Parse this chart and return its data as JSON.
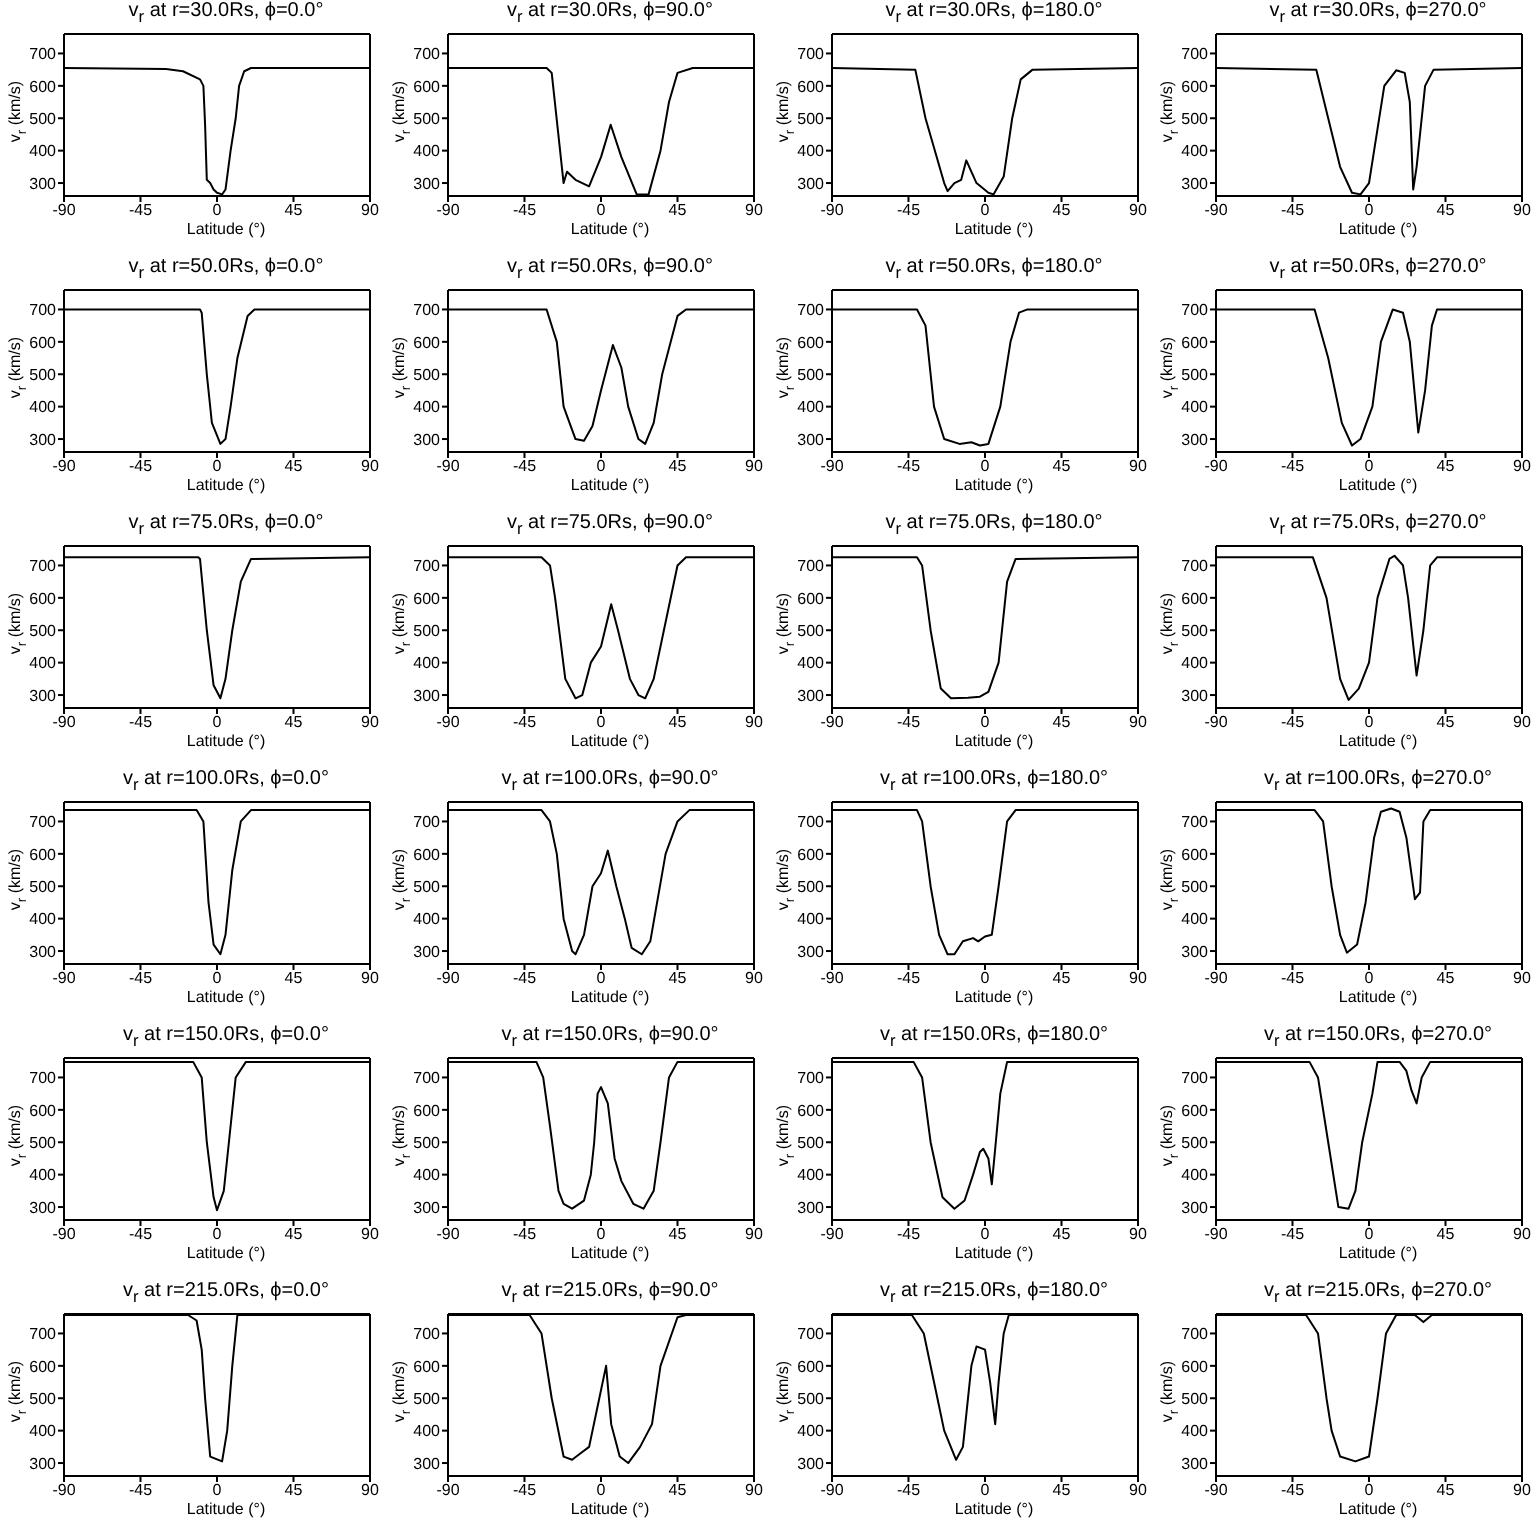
{
  "chart_data": [
    {
      "type": "line",
      "title": "v$_{r}$ at r=30.0Rs, ϕ=0.0°",
      "xlabel": "Latitude (°)",
      "ylabel": "v$_{r}$ (km/s)",
      "color": "#000000",
      "xlim": [
        -90,
        90
      ],
      "ylim": [
        260,
        760
      ],
      "xticks": [
        -90,
        -45,
        0,
        45,
        90
      ],
      "yticks": [
        300,
        400,
        500,
        600,
        700
      ],
      "x": [
        -90,
        -30,
        -20,
        -10,
        -8,
        -7,
        -6,
        -4,
        -2,
        0,
        3,
        5,
        8,
        11,
        13,
        16,
        20,
        90
      ],
      "values": [
        655,
        652,
        645,
        620,
        600,
        480,
        310,
        300,
        280,
        270,
        265,
        280,
        400,
        500,
        600,
        645,
        655,
        655
      ]
    },
    {
      "type": "line",
      "title": "v$_{r}$ at r=30.0Rs, ϕ=90.0°",
      "xlabel": "Latitude (°)",
      "ylabel": "v$_{r}$ (km/s)",
      "color": "#000000",
      "xlim": [
        -90,
        90
      ],
      "ylim": [
        260,
        760
      ],
      "xticks": [
        -90,
        -45,
        0,
        45,
        90
      ],
      "yticks": [
        300,
        400,
        500,
        600,
        700
      ],
      "x": [
        -90,
        -32,
        -29,
        -22,
        -20,
        -15,
        -7,
        0,
        5.7,
        12,
        21,
        28,
        35,
        40,
        45,
        54,
        90
      ],
      "values": [
        655,
        655,
        640,
        300,
        335,
        310,
        290,
        380,
        480,
        380,
        265,
        265,
        400,
        550,
        640,
        655,
        655
      ]
    },
    {
      "type": "line",
      "title": "v$_{r}$ at r=30.0Rs, ϕ=180.0°",
      "xlabel": "Latitude (°)",
      "ylabel": "v$_{r}$ (km/s)",
      "color": "#000000",
      "xlim": [
        -90,
        90
      ],
      "ylim": [
        260,
        760
      ],
      "xticks": [
        -90,
        -45,
        0,
        45,
        90
      ],
      "yticks": [
        300,
        400,
        500,
        600,
        700
      ],
      "x": [
        -90,
        -41,
        -35,
        -24,
        -22,
        -18,
        -14,
        -11,
        -5,
        2,
        5,
        11,
        16,
        21,
        28,
        90
      ],
      "values": [
        655,
        650,
        500,
        300,
        275,
        300,
        310,
        370,
        300,
        270,
        265,
        320,
        500,
        620,
        650,
        655
      ]
    },
    {
      "type": "line",
      "title": "v$_{r}$ at r=30.0Rs, ϕ=270.0°",
      "xlabel": "Latitude (°)",
      "ylabel": "v$_{r}$ (km/s)",
      "color": "#000000",
      "xlim": [
        -90,
        90
      ],
      "ylim": [
        260,
        760
      ],
      "xticks": [
        -90,
        -45,
        0,
        45,
        90
      ],
      "yticks": [
        300,
        400,
        500,
        600,
        700
      ],
      "x": [
        -90,
        -31,
        -24,
        -17,
        -10,
        -5,
        0,
        3,
        9,
        16,
        21,
        24,
        26,
        28,
        33,
        38,
        90
      ],
      "values": [
        655,
        650,
        500,
        350,
        270,
        265,
        300,
        400,
        600,
        648,
        640,
        550,
        280,
        350,
        600,
        650,
        655
      ]
    },
    {
      "type": "line",
      "title": "v$_{r}$ at r=50.0Rs, ϕ=0.0°",
      "xlabel": "Latitude (°)",
      "ylabel": "v$_{r}$ (km/s)",
      "color": "#000000",
      "xlim": [
        -90,
        90
      ],
      "ylim": [
        260,
        760
      ],
      "xticks": [
        -90,
        -45,
        0,
        45,
        90
      ],
      "yticks": [
        300,
        400,
        500,
        600,
        700
      ],
      "x": [
        -90,
        -10,
        -9,
        -6,
        -3,
        2,
        5,
        8,
        12,
        18,
        22,
        90
      ],
      "values": [
        700,
        700,
        690,
        500,
        350,
        285,
        300,
        400,
        550,
        680,
        700,
        700
      ]
    },
    {
      "type": "line",
      "title": "v$_{r}$ at r=50.0Rs, ϕ=90.0°",
      "xlabel": "Latitude (°)",
      "ylabel": "v$_{r}$ (km/s)",
      "color": "#000000",
      "xlim": [
        -90,
        90
      ],
      "ylim": [
        260,
        760
      ],
      "xticks": [
        -90,
        -45,
        0,
        45,
        90
      ],
      "yticks": [
        300,
        400,
        500,
        600,
        700
      ],
      "x": [
        -90,
        -32,
        -26,
        -22,
        -15,
        -10,
        -5,
        0,
        7,
        12,
        16,
        22,
        26,
        31,
        36,
        45,
        50,
        90
      ],
      "values": [
        700,
        700,
        600,
        400,
        300,
        295,
        340,
        450,
        590,
        520,
        400,
        300,
        285,
        350,
        500,
        680,
        700,
        700
      ]
    },
    {
      "type": "line",
      "title": "v$_{r}$ at r=50.0Rs, ϕ=180.0°",
      "xlabel": "Latitude (°)",
      "ylabel": "v$_{r}$ (km/s)",
      "color": "#000000",
      "xlim": [
        -90,
        90
      ],
      "ylim": [
        260,
        760
      ],
      "xticks": [
        -90,
        -45,
        0,
        45,
        90
      ],
      "yticks": [
        300,
        400,
        500,
        600,
        700
      ],
      "x": [
        -90,
        -40,
        -35,
        -30,
        -24,
        -15,
        -8,
        -3,
        2,
        9,
        15,
        20,
        25,
        90
      ],
      "values": [
        700,
        700,
        650,
        400,
        300,
        285,
        290,
        280,
        285,
        400,
        600,
        690,
        700,
        700
      ]
    },
    {
      "type": "line",
      "title": "v$_{r}$ at r=50.0Rs, ϕ=270.0°",
      "xlabel": "Latitude (°)",
      "ylabel": "v$_{r}$ (km/s)",
      "color": "#000000",
      "xlim": [
        -90,
        90
      ],
      "ylim": [
        260,
        760
      ],
      "xticks": [
        -90,
        -45,
        0,
        45,
        90
      ],
      "yticks": [
        300,
        400,
        500,
        600,
        700
      ],
      "x": [
        -90,
        -32,
        -24,
        -16,
        -10,
        -5,
        2,
        7,
        14,
        20,
        24,
        29,
        33,
        37,
        40,
        90
      ],
      "values": [
        700,
        700,
        550,
        350,
        280,
        300,
        400,
        600,
        700,
        690,
        600,
        320,
        450,
        650,
        700,
        700
      ]
    },
    {
      "type": "line",
      "title": "v$_{r}$ at r=75.0Rs, ϕ=0.0°",
      "xlabel": "Latitude (°)",
      "ylabel": "v$_{r}$ (km/s)",
      "color": "#000000",
      "xlim": [
        -90,
        90
      ],
      "ylim": [
        260,
        760
      ],
      "xticks": [
        -90,
        -45,
        0,
        45,
        90
      ],
      "yticks": [
        300,
        400,
        500,
        600,
        700
      ],
      "x": [
        -90,
        -11,
        -10,
        -6,
        -2,
        2,
        5,
        9,
        14,
        20,
        90
      ],
      "values": [
        725,
        725,
        720,
        500,
        330,
        290,
        350,
        500,
        650,
        720,
        725
      ]
    },
    {
      "type": "line",
      "title": "v$_{r}$ at r=75.0Rs, ϕ=90.0°",
      "xlabel": "Latitude (°)",
      "ylabel": "v$_{r}$ (km/s)",
      "color": "#000000",
      "xlim": [
        -90,
        90
      ],
      "ylim": [
        260,
        760
      ],
      "xticks": [
        -90,
        -45,
        0,
        45,
        90
      ],
      "yticks": [
        300,
        400,
        500,
        600,
        700
      ],
      "x": [
        -90,
        -35,
        -30,
        -27,
        -21,
        -15,
        -11,
        -6,
        0,
        6,
        10,
        17,
        22,
        26,
        31,
        37,
        45,
        50,
        90
      ],
      "values": [
        725,
        725,
        700,
        600,
        350,
        290,
        300,
        400,
        450,
        580,
        500,
        350,
        300,
        290,
        350,
        500,
        700,
        725,
        725
      ]
    },
    {
      "type": "line",
      "title": "v$_{r}$ at r=75.0Rs, ϕ=180.0°",
      "xlabel": "Latitude (°)",
      "ylabel": "v$_{r}$ (km/s)",
      "color": "#000000",
      "xlim": [
        -90,
        90
      ],
      "ylim": [
        260,
        760
      ],
      "xticks": [
        -90,
        -45,
        0,
        45,
        90
      ],
      "yticks": [
        300,
        400,
        500,
        600,
        700
      ],
      "x": [
        -90,
        -40,
        -37,
        -32,
        -26,
        -20,
        -10,
        -3,
        2,
        8,
        13,
        18,
        90
      ],
      "values": [
        725,
        725,
        700,
        500,
        320,
        290,
        292,
        295,
        310,
        400,
        650,
        720,
        725
      ]
    },
    {
      "type": "line",
      "title": "v$_{r}$ at r=75.0Rs, ϕ=270.0°",
      "xlabel": "Latitude (°)",
      "ylabel": "v$_{r}$ (km/s)",
      "color": "#000000",
      "xlim": [
        -90,
        90
      ],
      "ylim": [
        260,
        760
      ],
      "xticks": [
        -90,
        -45,
        0,
        45,
        90
      ],
      "yticks": [
        300,
        400,
        500,
        600,
        700
      ],
      "x": [
        -90,
        -33,
        -25,
        -17,
        -12,
        -6,
        0,
        5,
        12,
        15,
        20,
        23,
        28,
        32,
        36,
        40,
        90
      ],
      "values": [
        725,
        725,
        600,
        350,
        285,
        320,
        400,
        600,
        720,
        730,
        700,
        600,
        360,
        500,
        700,
        725,
        725
      ]
    },
    {
      "type": "line",
      "title": "v$_{r}$ at r=100.0Rs, ϕ=0.0°",
      "xlabel": "Latitude (°)",
      "ylabel": "v$_{r}$ (km/s)",
      "color": "#000000",
      "xlim": [
        -90,
        90
      ],
      "ylim": [
        260,
        760
      ],
      "xticks": [
        -90,
        -45,
        0,
        45,
        90
      ],
      "yticks": [
        300,
        400,
        500,
        600,
        700
      ],
      "x": [
        -90,
        -12,
        -8,
        -5,
        -2,
        2,
        5,
        9,
        14,
        20,
        90
      ],
      "values": [
        735,
        735,
        700,
        450,
        320,
        290,
        350,
        550,
        700,
        735,
        735
      ]
    },
    {
      "type": "line",
      "title": "v$_{r}$ at r=100.0Rs, ϕ=90.0°",
      "xlabel": "Latitude (°)",
      "ylabel": "v$_{r}$ (km/s)",
      "color": "#000000",
      "xlim": [
        -90,
        90
      ],
      "ylim": [
        260,
        760
      ],
      "xticks": [
        -90,
        -45,
        0,
        45,
        90
      ],
      "yticks": [
        300,
        400,
        500,
        600,
        700
      ],
      "x": [
        -90,
        -35,
        -30,
        -26,
        -22,
        -17,
        -15,
        -10,
        -5,
        0,
        4,
        9,
        14,
        18,
        24,
        29,
        33,
        38,
        45,
        52,
        90
      ],
      "values": [
        735,
        735,
        700,
        600,
        400,
        300,
        290,
        350,
        500,
        540,
        610,
        500,
        400,
        310,
        290,
        330,
        450,
        600,
        700,
        735,
        735
      ]
    },
    {
      "type": "line",
      "title": "v$_{r}$ at r=100.0Rs, ϕ=180.0°",
      "xlabel": "Latitude (°)",
      "ylabel": "v$_{r}$ (km/s)",
      "color": "#000000",
      "xlim": [
        -90,
        90
      ],
      "ylim": [
        260,
        760
      ],
      "xticks": [
        -90,
        -45,
        0,
        45,
        90
      ],
      "yticks": [
        300,
        400,
        500,
        600,
        700
      ],
      "x": [
        -90,
        -40,
        -37,
        -32,
        -27,
        -22,
        -18,
        -13,
        -7,
        -4,
        0,
        4,
        8,
        13,
        18,
        90
      ],
      "values": [
        735,
        735,
        700,
        500,
        350,
        290,
        290,
        330,
        340,
        330,
        345,
        350,
        500,
        700,
        735,
        735
      ]
    },
    {
      "type": "line",
      "title": "v$_{r}$ at r=100.0Rs, ϕ=270.0°",
      "xlabel": "Latitude (°)",
      "ylabel": "v$_{r}$ (km/s)",
      "color": "#000000",
      "xlim": [
        -90,
        90
      ],
      "ylim": [
        260,
        760
      ],
      "xticks": [
        -90,
        -45,
        0,
        45,
        90
      ],
      "yticks": [
        300,
        400,
        500,
        600,
        700
      ],
      "x": [
        -90,
        -32,
        -27,
        -22,
        -17,
        -13,
        -7,
        -2,
        3,
        7,
        13,
        18,
        22,
        27,
        30,
        32,
        36,
        90
      ],
      "values": [
        735,
        735,
        700,
        500,
        350,
        295,
        320,
        450,
        650,
        730,
        740,
        730,
        650,
        460,
        480,
        700,
        735,
        735
      ]
    },
    {
      "type": "line",
      "title": "v$_{r}$ at r=150.0Rs, ϕ=0.0°",
      "xlabel": "Latitude (°)",
      "ylabel": "v$_{r}$ (km/s)",
      "color": "#000000",
      "xlim": [
        -90,
        90
      ],
      "ylim": [
        260,
        760
      ],
      "xticks": [
        -90,
        -45,
        0,
        45,
        90
      ],
      "yticks": [
        300,
        400,
        500,
        600,
        700
      ],
      "x": [
        -90,
        -14,
        -9,
        -6,
        -2,
        0,
        4,
        7,
        11,
        17,
        90
      ],
      "values": [
        748,
        748,
        700,
        500,
        330,
        290,
        350,
        500,
        700,
        748,
        748
      ]
    },
    {
      "type": "line",
      "title": "v$_{r}$ at r=150.0Rs, ϕ=90.0°",
      "xlabel": "Latitude (°)",
      "ylabel": "v$_{r}$ (km/s)",
      "color": "#000000",
      "xlim": [
        -90,
        90
      ],
      "ylim": [
        260,
        760
      ],
      "xticks": [
        -90,
        -45,
        0,
        45,
        90
      ],
      "yticks": [
        300,
        400,
        500,
        600,
        700
      ],
      "x": [
        -90,
        -38,
        -34,
        -30,
        -25,
        -22,
        -17,
        -10,
        -6,
        -4,
        -2,
        0,
        4,
        8,
        12,
        19,
        25,
        31,
        35,
        40,
        45,
        90
      ],
      "values": [
        748,
        748,
        700,
        550,
        350,
        310,
        295,
        320,
        400,
        500,
        650,
        670,
        620,
        450,
        380,
        310,
        295,
        350,
        500,
        700,
        748,
        748
      ]
    },
    {
      "type": "line",
      "title": "v$_{r}$ at r=150.0Rs, ϕ=180.0°",
      "xlabel": "Latitude (°)",
      "ylabel": "v$_{r}$ (km/s)",
      "color": "#000000",
      "xlim": [
        -90,
        90
      ],
      "ylim": [
        260,
        760
      ],
      "xticks": [
        -90,
        -45,
        0,
        45,
        90
      ],
      "yticks": [
        300,
        400,
        500,
        600,
        700
      ],
      "x": [
        -90,
        -42,
        -37,
        -32,
        -25,
        -18,
        -12,
        -7,
        -3,
        -1,
        2,
        4,
        6,
        9,
        13,
        90
      ],
      "values": [
        748,
        748,
        700,
        500,
        330,
        295,
        320,
        400,
        470,
        480,
        450,
        370,
        480,
        650,
        748,
        748
      ]
    },
    {
      "type": "line",
      "title": "v$_{r}$ at r=150.0Rs, ϕ=270.0°",
      "xlabel": "Latitude (°)",
      "ylabel": "v$_{r}$ (km/s)",
      "color": "#000000",
      "xlim": [
        -90,
        90
      ],
      "ylim": [
        260,
        760
      ],
      "xticks": [
        -90,
        -45,
        0,
        45,
        90
      ],
      "yticks": [
        300,
        400,
        500,
        600,
        700
      ],
      "x": [
        -90,
        -35,
        -30,
        -24,
        -18,
        -12,
        -8,
        -4,
        2,
        5,
        18,
        22,
        25,
        28,
        31,
        36,
        90
      ],
      "values": [
        748,
        748,
        700,
        500,
        300,
        295,
        350,
        500,
        650,
        748,
        748,
        720,
        660,
        620,
        700,
        748,
        748
      ]
    },
    {
      "type": "line",
      "title": "v$_{r}$ at r=215.0Rs, ϕ=0.0°",
      "xlabel": "Latitude (°)",
      "ylabel": "v$_{r}$ (km/s)",
      "color": "#000000",
      "xlim": [
        -90,
        90
      ],
      "ylim": [
        260,
        760
      ],
      "xticks": [
        -90,
        -45,
        0,
        45,
        90
      ],
      "yticks": [
        300,
        400,
        500,
        600,
        700
      ],
      "x": [
        -90,
        -17,
        -12,
        -9,
        -7,
        -4,
        3,
        6,
        9,
        12,
        90
      ],
      "values": [
        757,
        757,
        740,
        650,
        500,
        320,
        305,
        400,
        600,
        757,
        757
      ]
    },
    {
      "type": "line",
      "title": "v$_{r}$ at r=215.0Rs, ϕ=90.0°",
      "xlabel": "Latitude (°)",
      "ylabel": "v$_{r}$ (km/s)",
      "color": "#000000",
      "xlim": [
        -90,
        90
      ],
      "ylim": [
        260,
        760
      ],
      "xticks": [
        -90,
        -45,
        0,
        45,
        90
      ],
      "yticks": [
        300,
        400,
        500,
        600,
        700
      ],
      "x": [
        -90,
        -42,
        -35,
        -29,
        -22,
        -17,
        -12,
        -7,
        -3,
        3,
        6,
        11,
        16,
        23,
        30,
        35,
        45,
        50,
        90
      ],
      "values": [
        757,
        757,
        700,
        500,
        320,
        310,
        330,
        350,
        450,
        600,
        420,
        320,
        300,
        350,
        420,
        600,
        750,
        757,
        757
      ]
    },
    {
      "type": "line",
      "title": "v$_{r}$ at r=215.0Rs, ϕ=180.0°",
      "xlabel": "Latitude (°)",
      "ylabel": "v$_{r}$ (km/s)",
      "color": "#000000",
      "xlim": [
        -90,
        90
      ],
      "ylim": [
        260,
        760
      ],
      "xticks": [
        -90,
        -45,
        0,
        45,
        90
      ],
      "yticks": [
        300,
        400,
        500,
        600,
        700
      ],
      "x": [
        -90,
        -43,
        -36,
        -30,
        -24,
        -17,
        -13,
        -8,
        -5,
        0,
        3,
        6,
        8,
        11,
        14,
        90
      ],
      "values": [
        757,
        757,
        700,
        550,
        400,
        310,
        350,
        600,
        660,
        650,
        550,
        420,
        550,
        700,
        757,
        757
      ]
    },
    {
      "type": "line",
      "title": "v$_{r}$ at r=215.0Rs, ϕ=270.0°",
      "xlabel": "Latitude (°)",
      "ylabel": "v$_{r}$ (km/s)",
      "color": "#000000",
      "xlim": [
        -90,
        90
      ],
      "ylim": [
        260,
        760
      ],
      "xticks": [
        -90,
        -45,
        0,
        45,
        90
      ],
      "yticks": [
        300,
        400,
        500,
        600,
        700
      ],
      "x": [
        -90,
        -37,
        -30,
        -25,
        -22,
        -17,
        -8,
        0,
        5,
        10,
        16,
        27,
        32,
        37,
        90
      ],
      "values": [
        757,
        757,
        700,
        500,
        400,
        320,
        305,
        320,
        500,
        700,
        757,
        757,
        735,
        757,
        757
      ]
    }
  ]
}
